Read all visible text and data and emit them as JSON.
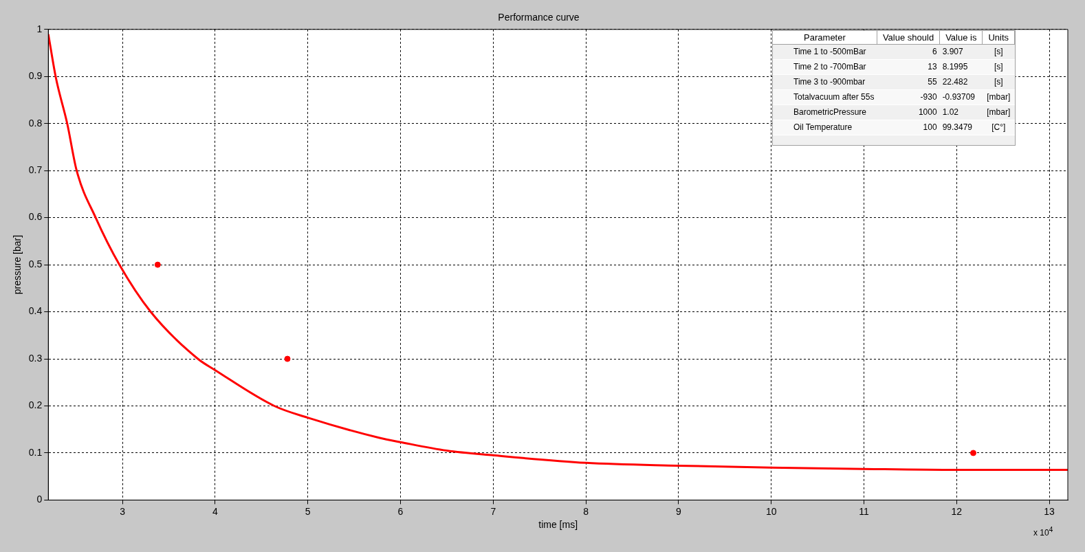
{
  "chart_data": [
    {
      "type": "line",
      "title": "Performance curve",
      "xlabel": "time [ms]",
      "ylabel": "pressure [bar]",
      "xlim": [
        2.2,
        13.2
      ],
      "xticks": [
        3,
        4,
        5,
        6,
        7,
        8,
        9,
        10,
        11,
        12,
        13
      ],
      "ylim": [
        0,
        1
      ],
      "yticks": [
        0,
        0.1,
        0.2,
        0.3,
        0.4,
        0.5,
        0.6,
        0.7,
        0.8,
        0.9,
        1
      ],
      "grid": true,
      "line_style": "solid",
      "annotations": [
        "x 10$^{4}$"
      ],
      "series": [
        {
          "color": "#ff0000",
          "marker": "none",
          "x": [
            2.2,
            2.282,
            2.404,
            2.506,
            2.711,
            2.967,
            3.304,
            3.814,
            4,
            4.638,
            5,
            5.775,
            6,
            6.5,
            7,
            8,
            9,
            10,
            11,
            12,
            13.2
          ],
          "values": [
            0.99,
            0.897,
            0.8,
            0.7,
            0.6,
            0.5,
            0.4,
            0.3,
            0.276,
            0.2,
            0.175,
            0.132,
            0.123,
            0.105,
            0.095,
            0.079,
            0.073,
            0.069,
            0.066,
            0.064,
            0.064
          ]
        },
        {
          "type": "scatter",
          "color": "#ff0000",
          "marker": "circle",
          "x": [
            3.38,
            4.78,
            12.18
          ],
          "values": [
            0.5,
            0.3,
            0.1
          ]
        }
      ]
    },
    {
      "type": "other",
      "categories": [
        "Parameter",
        "Value should",
        "Value is",
        "Units"
      ],
      "cell_labels": [
        [
          "Time 1 to -500mBar",
          "6",
          "3.907",
          "[s]"
        ],
        [
          "Time 2 to -700mBar",
          "13",
          "8.1995",
          "[s]"
        ],
        [
          "Time 3 to -900mbar",
          "55",
          "22.482",
          "[s]"
        ],
        [
          "Totalvacuum after 55s",
          "-930",
          "-0.93709",
          "[mbar]"
        ],
        [
          "BarometricPressure",
          "1000",
          "1.02",
          "[mbar]"
        ],
        [
          "Oil Temperature",
          "100",
          "99.3479",
          "[C°]"
        ]
      ]
    }
  ]
}
